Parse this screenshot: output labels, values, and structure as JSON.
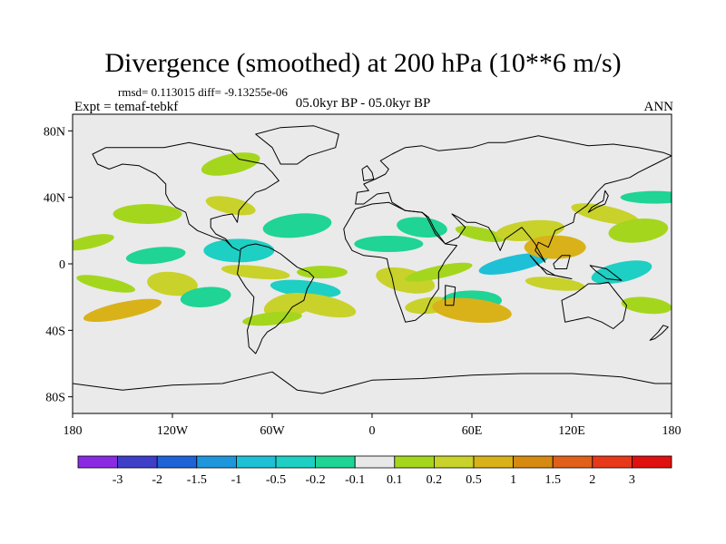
{
  "header": {
    "title": "Divergence (smoothed) at 200 hPa (10**6 m/s)",
    "stats": "rmsd= 0.113015  diff= -9.13255e-06",
    "experiment": "Expt = temaf-tebkf",
    "period": "05.0kyr BP - 05.0kyr BP",
    "season": "ANN"
  },
  "map": {
    "projection": "cylindrical-equidistant",
    "lon_range": [
      -180,
      180
    ],
    "lat_range": [
      -90,
      90
    ],
    "background_color": "#eaeaea",
    "coast_color": "#000000",
    "lat_ticks": [
      {
        "value": 80,
        "label": "80N"
      },
      {
        "value": 40,
        "label": "40N"
      },
      {
        "value": 0,
        "label": "0"
      },
      {
        "value": -40,
        "label": "40S"
      },
      {
        "value": -80,
        "label": "80S"
      }
    ],
    "lon_ticks": [
      {
        "value": -180,
        "label": "180"
      },
      {
        "value": -120,
        "label": "120W"
      },
      {
        "value": -60,
        "label": "60W"
      },
      {
        "value": 0,
        "label": "0"
      },
      {
        "value": 60,
        "label": "60E"
      },
      {
        "value": 120,
        "label": "120E"
      },
      {
        "value": 180,
        "label": "180"
      }
    ]
  },
  "colorbar": {
    "labels": [
      "-3",
      "-2",
      "-1.5",
      "-1",
      "-0.5",
      "-0.2",
      "-0.1",
      "0.1",
      "0.2",
      "0.5",
      "1",
      "1.5",
      "2",
      "3"
    ],
    "colors": [
      "#8a2be2",
      "#3e3ec9",
      "#1e64d8",
      "#1e96dc",
      "#1ec0d6",
      "#1ecfc3",
      "#1fd494",
      "#e8e8e8",
      "#a5d61e",
      "#c8d22a",
      "#d9b21a",
      "#d78a12",
      "#e0601a",
      "#e8381a",
      "#e01010"
    ]
  },
  "chart_data": {
    "type": "heatmap",
    "title": "Divergence (smoothed) at 200 hPa (10**6 m/s)",
    "units": "10**6 m/s",
    "levels": [
      -3,
      -2,
      -1.5,
      -1,
      -0.5,
      -0.2,
      -0.1,
      0.1,
      0.2,
      0.5,
      1,
      1.5,
      2,
      3
    ],
    "anomalies": [
      {
        "lon": -170,
        "lat": 13,
        "value": 0.15
      },
      {
        "lon": -130,
        "lat": 5,
        "value": -0.15
      },
      {
        "lon": -135,
        "lat": 30,
        "value": 0.15
      },
      {
        "lon": -120,
        "lat": -12,
        "value": 0.25
      },
      {
        "lon": -160,
        "lat": -12,
        "value": 0.15
      },
      {
        "lon": -150,
        "lat": -28,
        "value": 0.5
      },
      {
        "lon": -100,
        "lat": -20,
        "value": -0.15
      },
      {
        "lon": -80,
        "lat": 8,
        "value": -0.5
      },
      {
        "lon": -70,
        "lat": -5,
        "value": 0.2
      },
      {
        "lon": -85,
        "lat": 35,
        "value": 0.2
      },
      {
        "lon": -85,
        "lat": 60,
        "value": 0.15
      },
      {
        "lon": -45,
        "lat": 23,
        "value": -0.2
      },
      {
        "lon": -30,
        "lat": -5,
        "value": 0.15
      },
      {
        "lon": -40,
        "lat": -15,
        "value": -0.5
      },
      {
        "lon": -30,
        "lat": -25,
        "value": 0.3
      },
      {
        "lon": -50,
        "lat": -25,
        "value": 0.3
      },
      {
        "lon": -60,
        "lat": -33,
        "value": 0.15
      },
      {
        "lon": 10,
        "lat": 12,
        "value": -0.2
      },
      {
        "lon": 30,
        "lat": 22,
        "value": -0.15
      },
      {
        "lon": 20,
        "lat": -10,
        "value": 0.25
      },
      {
        "lon": 40,
        "lat": -5,
        "value": 0.15
      },
      {
        "lon": 35,
        "lat": -25,
        "value": 0.2
      },
      {
        "lon": 60,
        "lat": -22,
        "value": -0.2
      },
      {
        "lon": 60,
        "lat": -28,
        "value": 0.5
      },
      {
        "lon": 65,
        "lat": 18,
        "value": 0.15
      },
      {
        "lon": 85,
        "lat": 0,
        "value": -0.8
      },
      {
        "lon": 95,
        "lat": 20,
        "value": 0.3
      },
      {
        "lon": 110,
        "lat": 10,
        "value": 0.5
      },
      {
        "lon": 110,
        "lat": -12,
        "value": 0.2
      },
      {
        "lon": 140,
        "lat": 30,
        "value": 0.2
      },
      {
        "lon": 150,
        "lat": -5,
        "value": -0.5
      },
      {
        "lon": 160,
        "lat": 20,
        "value": 0.15
      },
      {
        "lon": 170,
        "lat": 40,
        "value": -0.15
      },
      {
        "lon": 165,
        "lat": -25,
        "value": 0.15
      }
    ]
  }
}
